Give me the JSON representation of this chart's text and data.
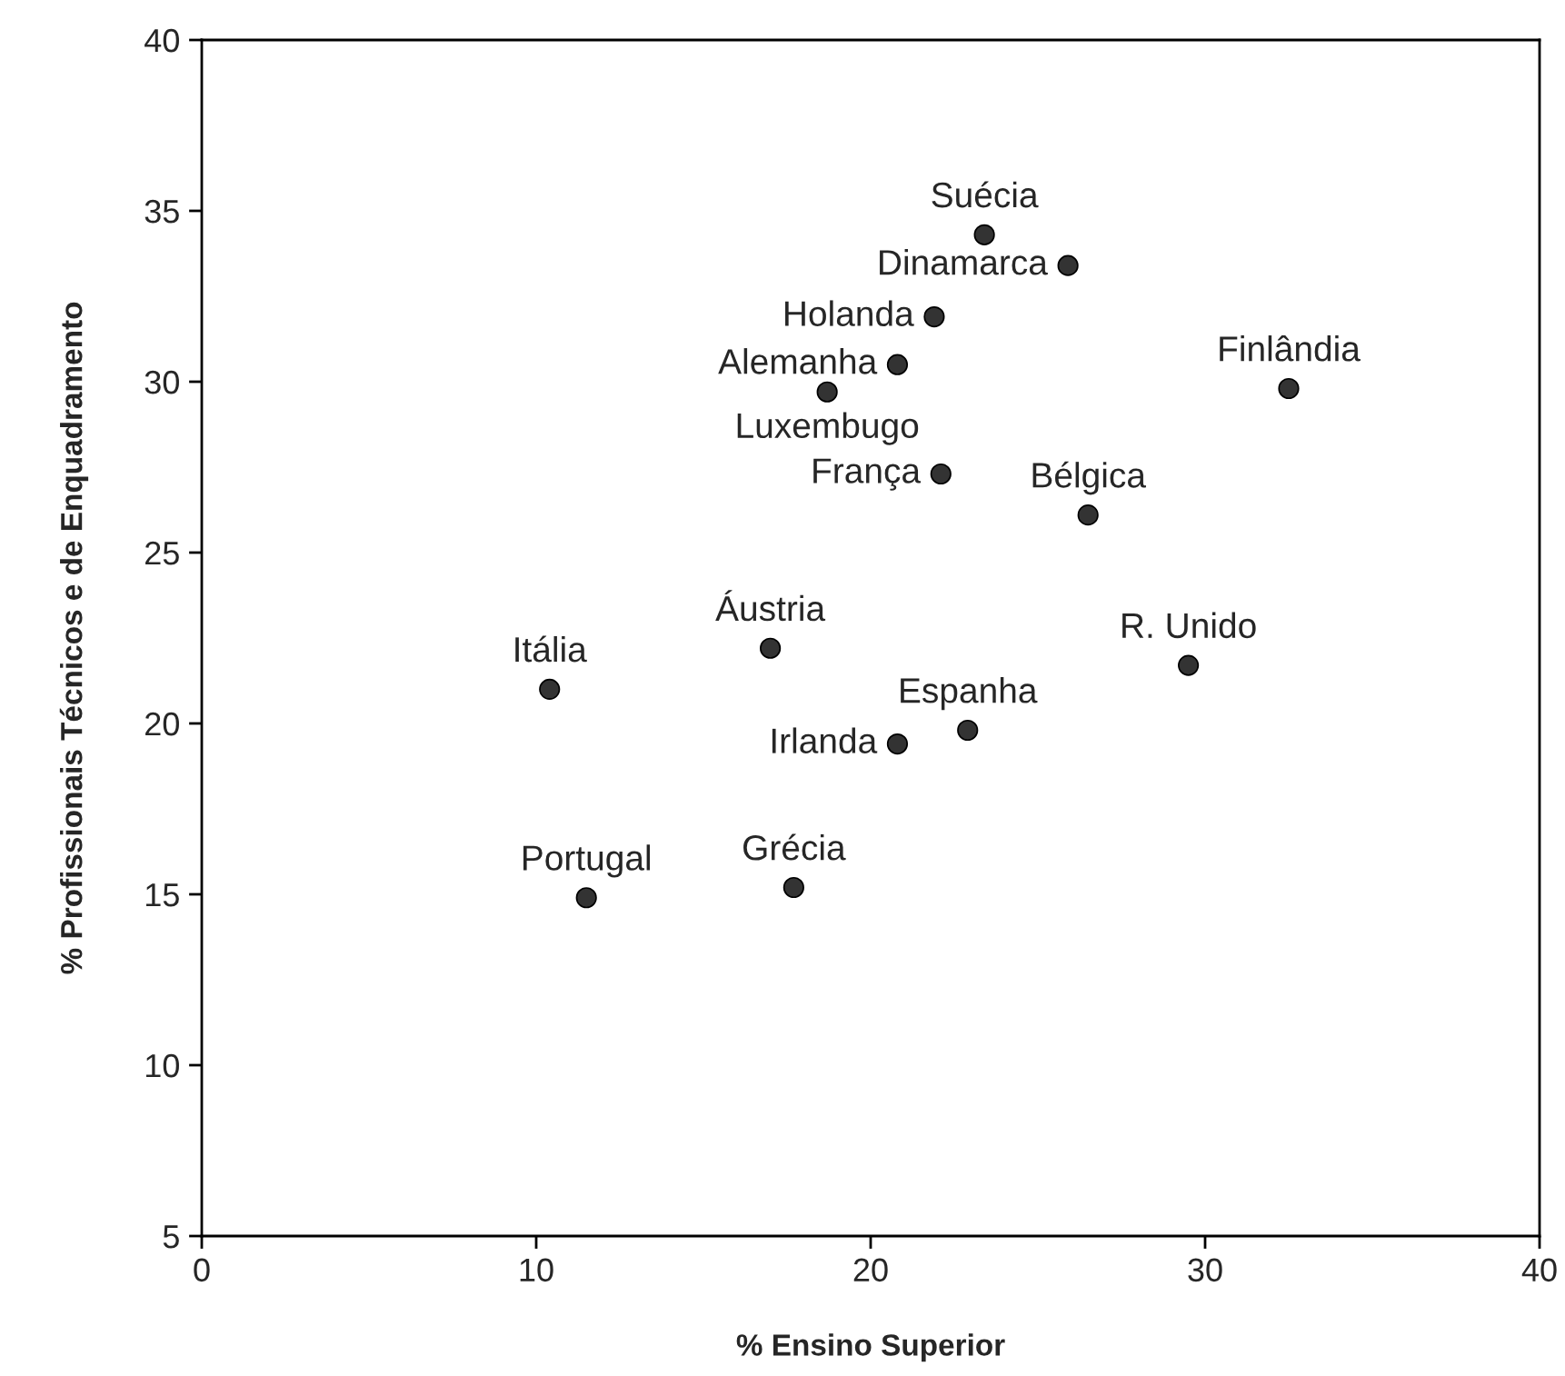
{
  "chart_data": {
    "type": "scatter",
    "xlabel": "% Ensino Superior",
    "ylabel": "% Profissionais Técnicos e de Enquadramento",
    "x": [
      23.4,
      25.9,
      21.9,
      20.8,
      18.7,
      32.5,
      22.1,
      26.5,
      17.0,
      10.4,
      29.5,
      22.9,
      20.8,
      11.5,
      17.7
    ],
    "series": [
      {
        "color": "#333333",
        "values": [
          34.3,
          33.4,
          31.9,
          30.5,
          29.7,
          29.8,
          27.3,
          26.1,
          22.2,
          21.0,
          21.7,
          19.8,
          19.4,
          14.9,
          15.2
        ]
      }
    ],
    "annotations": [
      {
        "text": "Suécia",
        "x": 23.4,
        "y": 34.3
      },
      {
        "text": "Dinamarca",
        "x": 25.9,
        "y": 33.4
      },
      {
        "text": "Holanda",
        "x": 21.9,
        "y": 31.9
      },
      {
        "text": "Alemanha",
        "x": 20.8,
        "y": 30.5
      },
      {
        "text": "Luxembugo",
        "x": 18.7,
        "y": 29.7
      },
      {
        "text": "Finlândia",
        "x": 32.5,
        "y": 29.8
      },
      {
        "text": "França",
        "x": 22.1,
        "y": 27.3
      },
      {
        "text": "Bélgica",
        "x": 26.5,
        "y": 26.1
      },
      {
        "text": "Áustria",
        "x": 17.0,
        "y": 22.2
      },
      {
        "text": "Itália",
        "x": 10.4,
        "y": 21.0
      },
      {
        "text": "R. Unido",
        "x": 29.5,
        "y": 21.7
      },
      {
        "text": "Espanha",
        "x": 22.9,
        "y": 19.8
      },
      {
        "text": "Irlanda",
        "x": 20.8,
        "y": 19.4
      },
      {
        "text": "Portugal",
        "x": 11.5,
        "y": 14.9
      },
      {
        "text": "Grécia",
        "x": 17.7,
        "y": 15.2
      }
    ],
    "xlim": [
      0,
      40
    ],
    "xticks": [
      0,
      10,
      20,
      30,
      40
    ],
    "ylim": [
      5,
      40
    ],
    "yticks": [
      5,
      10,
      15,
      20,
      25,
      30,
      35,
      40
    ],
    "marker": "circle",
    "grid": false
  }
}
